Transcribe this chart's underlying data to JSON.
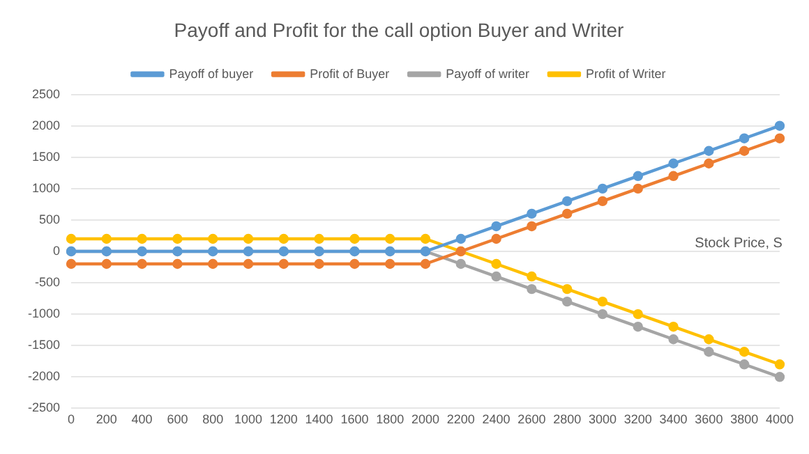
{
  "chart_data": {
    "type": "line",
    "title": "Payoff and Profit for the call option Buyer and Writer",
    "xlabel": "Stock Price, S",
    "categories": [
      "0",
      "200",
      "400",
      "600",
      "800",
      "1000",
      "1200",
      "1400",
      "1600",
      "1800",
      "2000",
      "2200",
      "2400",
      "2600",
      "2800",
      "3000",
      "3200",
      "3400",
      "3600",
      "3800",
      "4000"
    ],
    "series": [
      {
        "name": "Payoff of buyer",
        "color": "#5b9bd5",
        "values": [
          0,
          0,
          0,
          0,
          0,
          0,
          0,
          0,
          0,
          0,
          0,
          200,
          400,
          600,
          800,
          1000,
          1200,
          1400,
          1600,
          1800,
          2000
        ]
      },
      {
        "name": "Profit of Buyer",
        "color": "#ed7d31",
        "values": [
          -200,
          -200,
          -200,
          -200,
          -200,
          -200,
          -200,
          -200,
          -200,
          -200,
          -200,
          0,
          200,
          400,
          600,
          800,
          1000,
          1200,
          1400,
          1600,
          1800
        ]
      },
      {
        "name": "Payoff of writer",
        "color": "#a5a5a5",
        "values": [
          0,
          0,
          0,
          0,
          0,
          0,
          0,
          0,
          0,
          0,
          0,
          -200,
          -400,
          -600,
          -800,
          -1000,
          -1200,
          -1400,
          -1600,
          -1800,
          -2000
        ]
      },
      {
        "name": "Profit of Writer",
        "color": "#ffc000",
        "values": [
          200,
          200,
          200,
          200,
          200,
          200,
          200,
          200,
          200,
          200,
          200,
          0,
          -200,
          -400,
          -600,
          -800,
          -1000,
          -1200,
          -1400,
          -1600,
          -1800
        ]
      }
    ],
    "ylim": [
      -2500,
      2500
    ],
    "yticks": [
      -2500,
      -2000,
      -1500,
      -1000,
      -500,
      0,
      500,
      1000,
      1500,
      2000,
      2500
    ],
    "grid": "y",
    "legend": "top",
    "marker": "circle",
    "line_style": "solid"
  }
}
